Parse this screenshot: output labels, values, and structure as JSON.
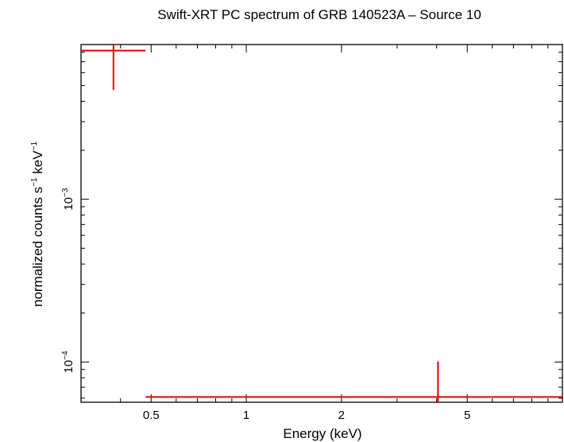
{
  "chart_data": {
    "type": "scatter",
    "title": "Swift-XRT PC spectrum of GRB 140523A – Source 10",
    "xlabel": "Energy (keV)",
    "ylabel_main": "normalized counts s",
    "ylabel_sup1": "−1",
    "ylabel_mid": " keV",
    "ylabel_sup2": "−1",
    "x_scale": "log",
    "y_scale": "log",
    "xlim": [
      0.3,
      10
    ],
    "ylim": [
      5.66e-05,
      0.00893
    ],
    "x_ticks": [
      {
        "value": 0.5,
        "label": "0.5"
      },
      {
        "value": 1,
        "label": "1"
      },
      {
        "value": 2,
        "label": "2"
      },
      {
        "value": 5,
        "label": "5"
      }
    ],
    "y_ticks": [
      {
        "value": 0.001,
        "base": "10",
        "exp": "−3"
      },
      {
        "value": 0.0001,
        "base": "10",
        "exp": "−4"
      }
    ],
    "grid": false,
    "color": "#e60000",
    "series": [
      {
        "points": [
          {
            "x": 0.38,
            "xlo": 0.3,
            "xhi": 0.48,
            "y": 0.0082,
            "ylo": 0.0047,
            "yhi": 0.00893
          },
          {
            "x": 4.04,
            "xlo": 0.48,
            "xhi": 10.0,
            "y": 6.1e-05,
            "ylo": 5.66e-05,
            "yhi": 0.000101
          }
        ]
      }
    ]
  }
}
